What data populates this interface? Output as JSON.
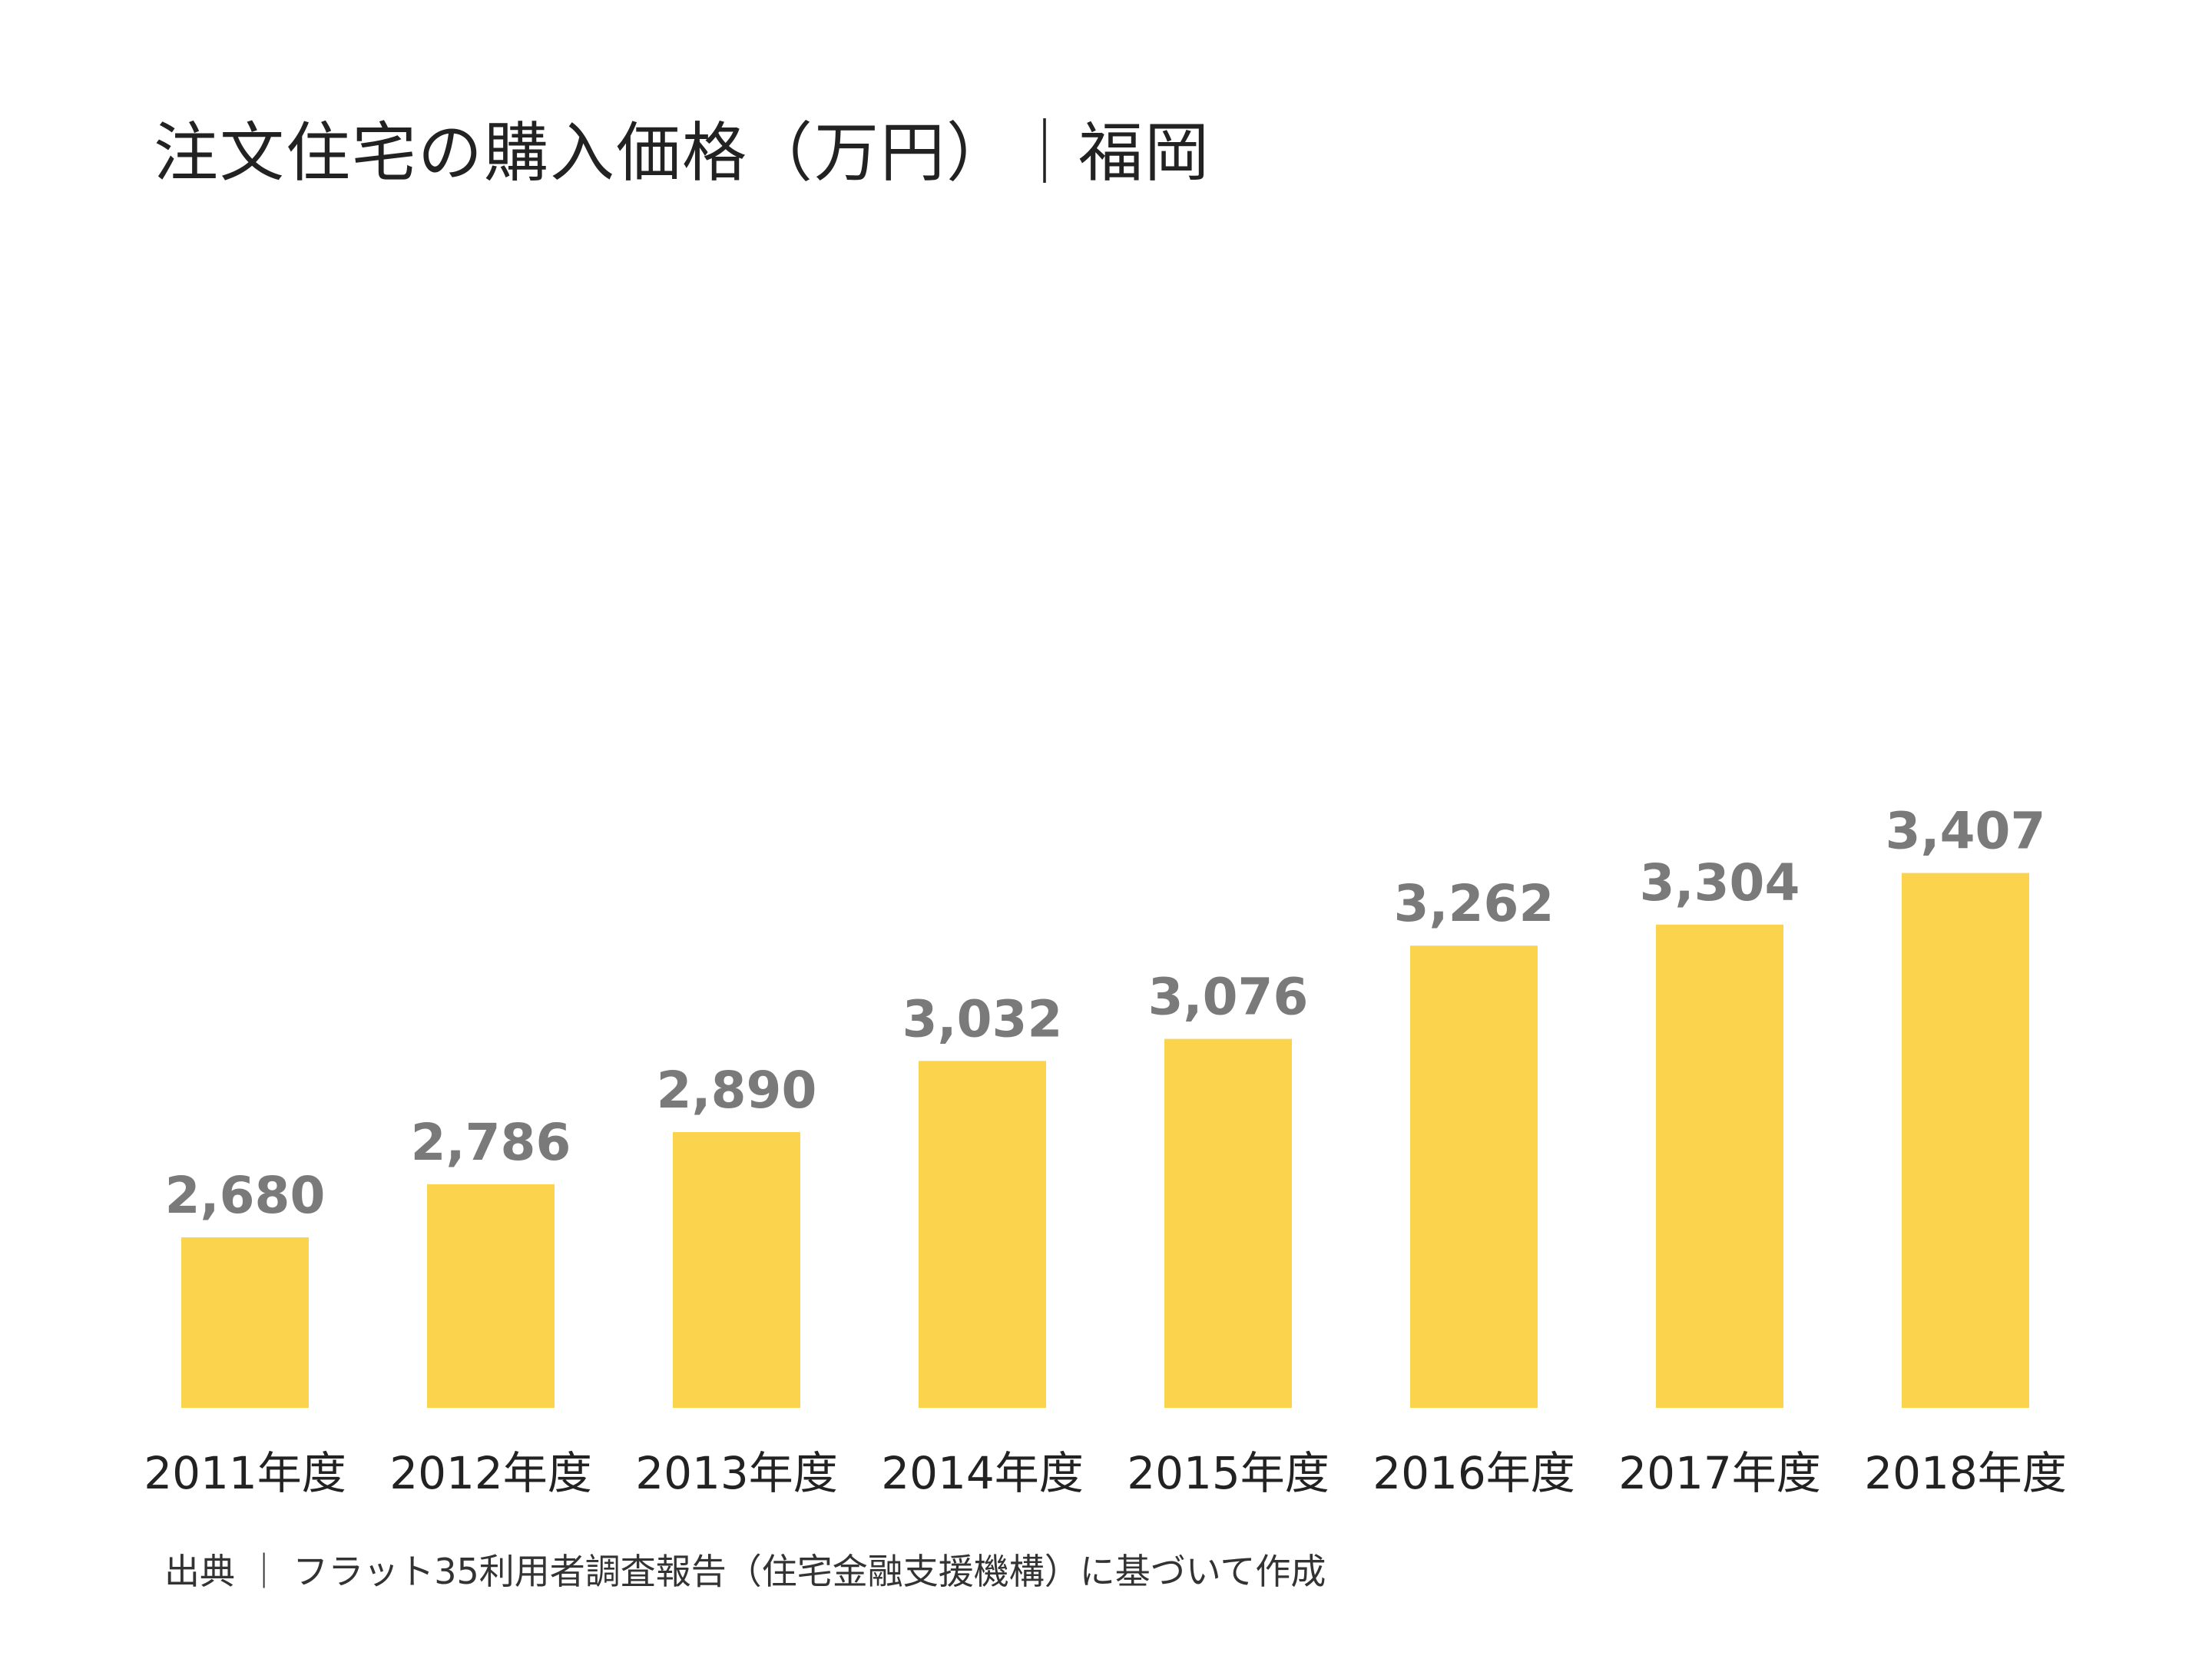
{
  "colors": {
    "bar": "#FCD34D",
    "value_label": "#7a7a7a",
    "text": "#222222"
  },
  "chart_data": {
    "type": "bar",
    "title": "注文住宅の購入価格（万円）｜福岡",
    "source": "出典 ｜ フラット35利用者調査報告（住宅金融支援機構）に基づいて作成",
    "categories": [
      "2011年度",
      "2012年度",
      "2013年度",
      "2014年度",
      "2015年度",
      "2016年度",
      "2017年度",
      "2018年度"
    ],
    "values": [
      2680,
      2786,
      2890,
      3032,
      3076,
      3262,
      3304,
      3407
    ],
    "value_labels": [
      "2,680",
      "2,786",
      "2,890",
      "3,032",
      "3,076",
      "3,262",
      "3,304",
      "3,407"
    ],
    "grid": false,
    "legend": "none"
  }
}
